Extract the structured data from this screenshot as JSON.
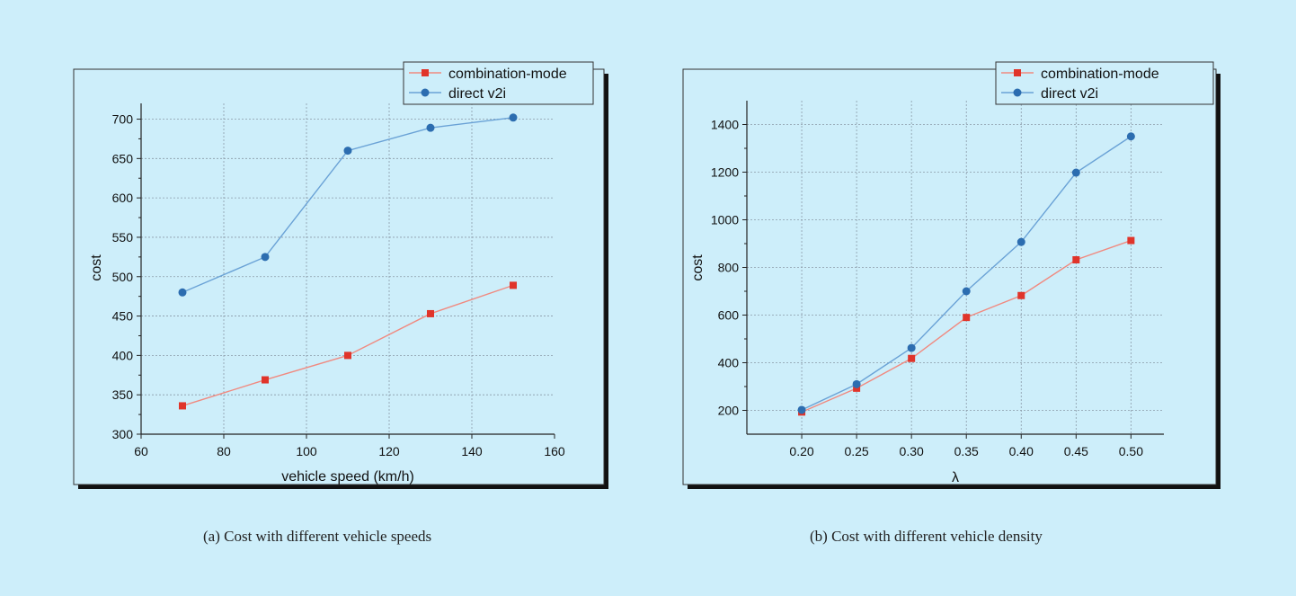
{
  "colors": {
    "page_bg": "#cdeefa",
    "plot_bg": "#cdeefa",
    "combination": "#e0342a",
    "direct": "#2c6db0",
    "line_combination": "#f08a80",
    "line_direct": "#6aa2d6",
    "grid": "#8a9aa8"
  },
  "chart_data": [
    {
      "type": "line",
      "title": "",
      "caption": "(a) Cost with different vehicle speeds",
      "xlabel": "vehicle speed (km/h)",
      "ylabel": "cost",
      "xlim": [
        60,
        160
      ],
      "ylim": [
        300,
        720
      ],
      "xticks": [
        60,
        80,
        100,
        120,
        140,
        160
      ],
      "xtick_labels": [
        "60",
        "80",
        "100",
        "120",
        "140",
        "160"
      ],
      "yticks": [
        300,
        350,
        400,
        450,
        500,
        550,
        600,
        650,
        700
      ],
      "ytick_labels": [
        "300",
        "350",
        "400",
        "450",
        "500",
        "550",
        "600",
        "650",
        "700"
      ],
      "grid": true,
      "legend": "top-right",
      "x": [
        70,
        90,
        110,
        130,
        150
      ],
      "series": [
        {
          "name": "combination-mode",
          "marker": "square",
          "values": [
            336,
            369,
            400,
            453,
            489
          ]
        },
        {
          "name": "direct v2i",
          "marker": "circle",
          "values": [
            480,
            525,
            660,
            689,
            702
          ]
        }
      ]
    },
    {
      "type": "line",
      "title": "",
      "caption": "(b) Cost with different vehicle density",
      "xlabel": "λ",
      "ylabel": "cost",
      "xlim": [
        0.15,
        0.53
      ],
      "ylim": [
        100,
        1500
      ],
      "xticks": [
        0.2,
        0.25,
        0.3,
        0.35,
        0.4,
        0.45,
        0.5
      ],
      "xtick_labels": [
        "0.20",
        "0.25",
        "0.30",
        "0.35",
        "0.40",
        "0.45",
        "0.50"
      ],
      "yticks": [
        200,
        400,
        600,
        800,
        1000,
        1200,
        1400
      ],
      "ytick_labels": [
        "200",
        "400",
        "600",
        "800",
        "1000",
        "1200",
        "1400"
      ],
      "grid": true,
      "legend": "top-right",
      "x": [
        0.2,
        0.25,
        0.3,
        0.35,
        0.4,
        0.45,
        0.5
      ],
      "series": [
        {
          "name": "combination-mode",
          "marker": "square",
          "values": [
            193,
            293,
            418,
            590,
            682,
            832,
            913
          ]
        },
        {
          "name": "direct v2i",
          "marker": "circle",
          "values": [
            202,
            310,
            462,
            700,
            907,
            1198,
            1350
          ]
        }
      ]
    }
  ]
}
